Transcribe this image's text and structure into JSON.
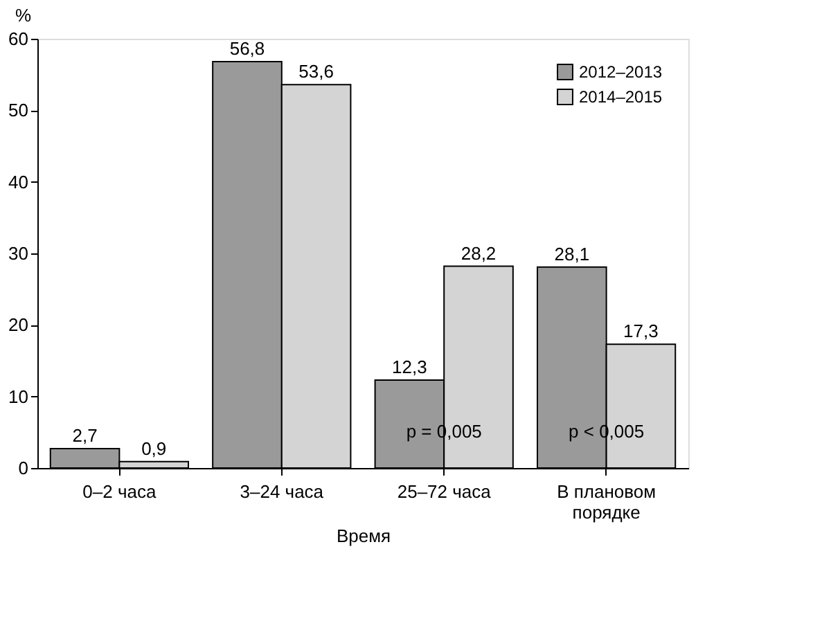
{
  "chart_data": {
    "type": "bar",
    "xlabel": "Время",
    "ylabel": "%",
    "categories": [
      "0–2 часа",
      "3–24 часа",
      "25–72 часа",
      "В плановом\nпорядке"
    ],
    "series": [
      {
        "name": "2012–2013",
        "color": "#9a9a9a",
        "values": [
          2.7,
          56.8,
          12.3,
          28.1
        ],
        "value_labels": [
          "2,7",
          "56,8",
          "12,3",
          "28,1"
        ]
      },
      {
        "name": "2014–2015",
        "color": "#d4d4d4",
        "values": [
          0.9,
          53.6,
          28.2,
          17.3
        ],
        "value_labels": [
          "0,9",
          "53,6",
          "28,2",
          "17,3"
        ]
      }
    ],
    "ylim": [
      0,
      60
    ],
    "yticks": [
      0,
      10,
      20,
      30,
      40,
      50,
      60
    ],
    "grid": false,
    "legend": "top right",
    "annotations": [
      {
        "text": "p = 0,005",
        "x": "25–72 часа",
        "y": 3
      },
      {
        "text": "p < 0,005",
        "x": "В плановом\nпорядке",
        "y": 3
      }
    ]
  }
}
